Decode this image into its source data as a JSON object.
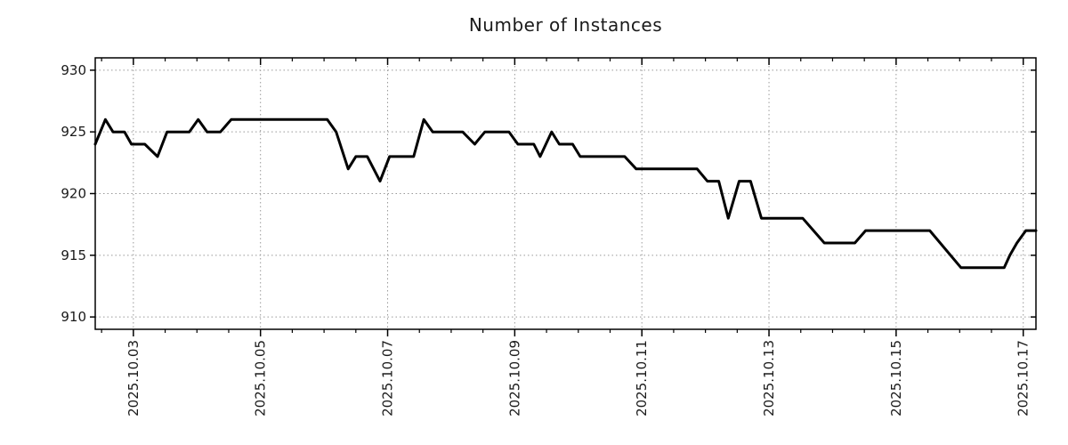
{
  "page": {
    "background": "#ffffff"
  },
  "chart_data": {
    "type": "line",
    "title": "Number of Instances",
    "xlabel": "",
    "ylabel": "",
    "legend": "none",
    "grid": true,
    "x_axis": {
      "kind": "date",
      "tick_labels": [
        "2025.10.03",
        "2025.10.05",
        "2025.10.07",
        "2025.10.09",
        "2025.10.11",
        "2025.10.13",
        "2025.10.15",
        "2025.10.17"
      ],
      "tick_days": [
        3,
        5,
        7,
        9,
        11,
        13,
        15,
        17
      ],
      "minor_tick_interval_days": 0.5,
      "range_days": [
        2.4,
        17.2
      ],
      "label_rotation_deg": -90
    },
    "y_axis": {
      "ticks": [
        910,
        915,
        920,
        925,
        930
      ],
      "range": [
        909,
        931
      ]
    },
    "series": [
      {
        "name": "Number of Instances",
        "color": "#000000",
        "line_width": 3,
        "points_day_value": [
          [
            2.4,
            924
          ],
          [
            2.56,
            926
          ],
          [
            2.68,
            925
          ],
          [
            2.86,
            925
          ],
          [
            2.97,
            924
          ],
          [
            3.18,
            924
          ],
          [
            3.38,
            923
          ],
          [
            3.53,
            925
          ],
          [
            3.88,
            925
          ],
          [
            4.02,
            926
          ],
          [
            4.16,
            925
          ],
          [
            4.37,
            925
          ],
          [
            4.54,
            926
          ],
          [
            6.05,
            926
          ],
          [
            6.19,
            925
          ],
          [
            6.38,
            922
          ],
          [
            6.5,
            923
          ],
          [
            6.68,
            923
          ],
          [
            6.88,
            921
          ],
          [
            7.03,
            923
          ],
          [
            7.41,
            923
          ],
          [
            7.57,
            926
          ],
          [
            7.71,
            925
          ],
          [
            8.18,
            925
          ],
          [
            8.37,
            924
          ],
          [
            8.53,
            925
          ],
          [
            8.91,
            925
          ],
          [
            9.05,
            924
          ],
          [
            9.3,
            924
          ],
          [
            9.4,
            923
          ],
          [
            9.58,
            925
          ],
          [
            9.7,
            924
          ],
          [
            9.91,
            924
          ],
          [
            10.03,
            923
          ],
          [
            10.73,
            923
          ],
          [
            10.91,
            922
          ],
          [
            11.87,
            922
          ],
          [
            12.03,
            921
          ],
          [
            12.21,
            921
          ],
          [
            12.36,
            918
          ],
          [
            12.53,
            921
          ],
          [
            12.71,
            921
          ],
          [
            12.88,
            918
          ],
          [
            13.53,
            918
          ],
          [
            13.87,
            916
          ],
          [
            14.35,
            916
          ],
          [
            14.52,
            917
          ],
          [
            15.53,
            917
          ],
          [
            16.02,
            914
          ],
          [
            16.7,
            914
          ],
          [
            16.79,
            915
          ],
          [
            16.9,
            916
          ],
          [
            17.04,
            917
          ],
          [
            17.2,
            917
          ]
        ]
      }
    ],
    "style": {
      "grid_color": "#999999",
      "axis_color": "#000000",
      "text_color": "#1a1a1a",
      "background": "#ffffff",
      "tick_font_size": 15,
      "title_font_size": 20
    }
  }
}
